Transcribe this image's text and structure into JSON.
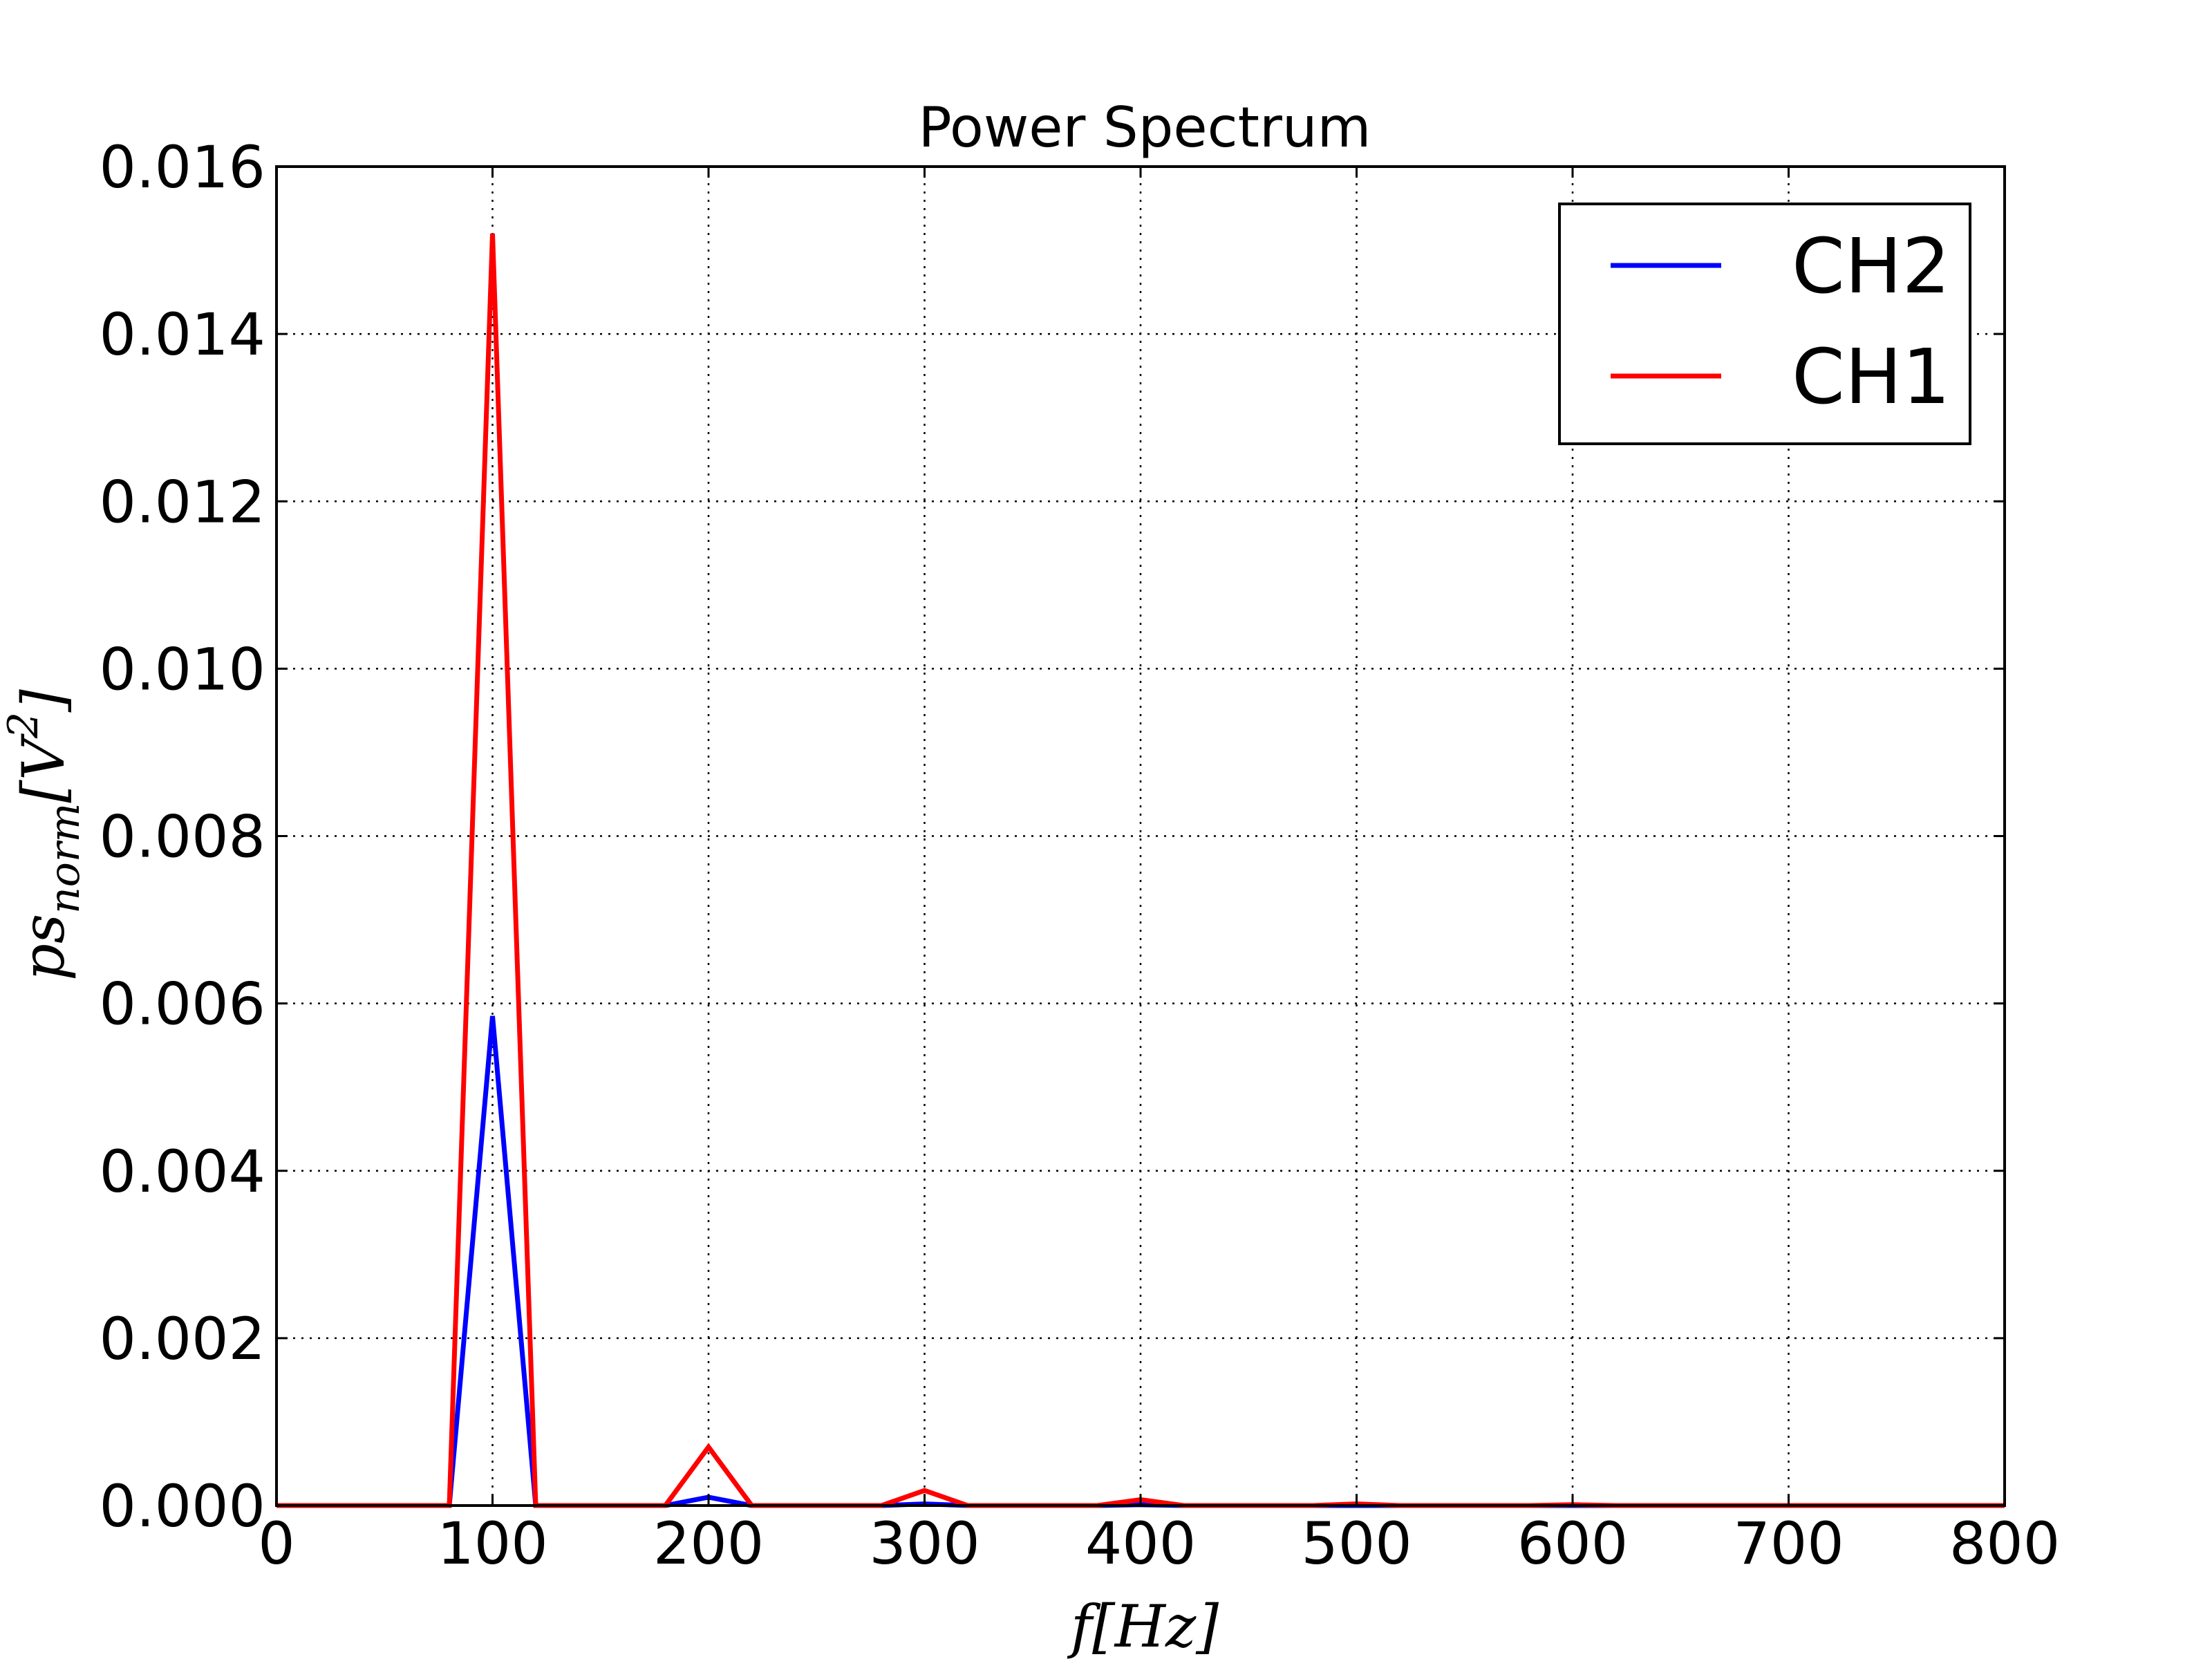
{
  "chart_data": {
    "type": "line",
    "title": "Power Spectrum",
    "xlabel": "f[Hz]",
    "ylabel": "ps_norm[V^2]",
    "ylabel_parts": {
      "base": "ps",
      "sub": "norm",
      "bracket_open": "[V",
      "sup": "2",
      "bracket_close": "]"
    },
    "xlim": [
      0,
      800
    ],
    "ylim": [
      0,
      0.016
    ],
    "xticks": [
      0,
      100,
      200,
      300,
      400,
      500,
      600,
      700,
      800
    ],
    "xtick_labels": [
      "0",
      "100",
      "200",
      "300",
      "400",
      "500",
      "600",
      "700",
      "800"
    ],
    "yticks": [
      0,
      0.002,
      0.004,
      0.006,
      0.008,
      0.01,
      0.012,
      0.014,
      0.016
    ],
    "ytick_labels": [
      "0.000",
      "0.002",
      "0.004",
      "0.006",
      "0.008",
      "0.010",
      "0.012",
      "0.014",
      "0.016"
    ],
    "grid": true,
    "grid_style": "dotted",
    "legend_position": "top-right",
    "x": [
      0,
      20,
      40,
      60,
      80,
      100,
      120,
      140,
      160,
      180,
      200,
      220,
      240,
      260,
      280,
      300,
      320,
      340,
      360,
      380,
      400,
      420,
      440,
      460,
      480,
      500,
      520,
      540,
      560,
      580,
      600,
      620,
      640,
      660,
      680,
      700,
      720,
      740,
      760,
      780,
      800
    ],
    "series": [
      {
        "name": "CH2",
        "color": "#0000ff",
        "values": [
          0,
          0,
          0,
          0,
          0,
          0.00585,
          0,
          0,
          0,
          0,
          0.0001,
          0,
          0,
          0,
          0,
          2e-05,
          0,
          0,
          0,
          0,
          1e-05,
          0,
          0,
          0,
          0,
          0,
          0,
          0,
          0,
          0,
          0,
          0,
          0,
          0,
          0,
          0,
          0,
          0,
          0,
          0,
          0
        ]
      },
      {
        "name": "CH1",
        "color": "#ff0000",
        "values": [
          0,
          0,
          0,
          0,
          0,
          0.0152,
          0,
          0,
          0,
          0,
          0.0007,
          0,
          0,
          0,
          0,
          0.00018,
          0,
          0,
          0,
          0,
          7e-05,
          0,
          0,
          0,
          0,
          2e-05,
          0,
          0,
          0,
          0,
          1e-05,
          0,
          0,
          0,
          0,
          0,
          0,
          0,
          0,
          0,
          0
        ]
      }
    ]
  }
}
